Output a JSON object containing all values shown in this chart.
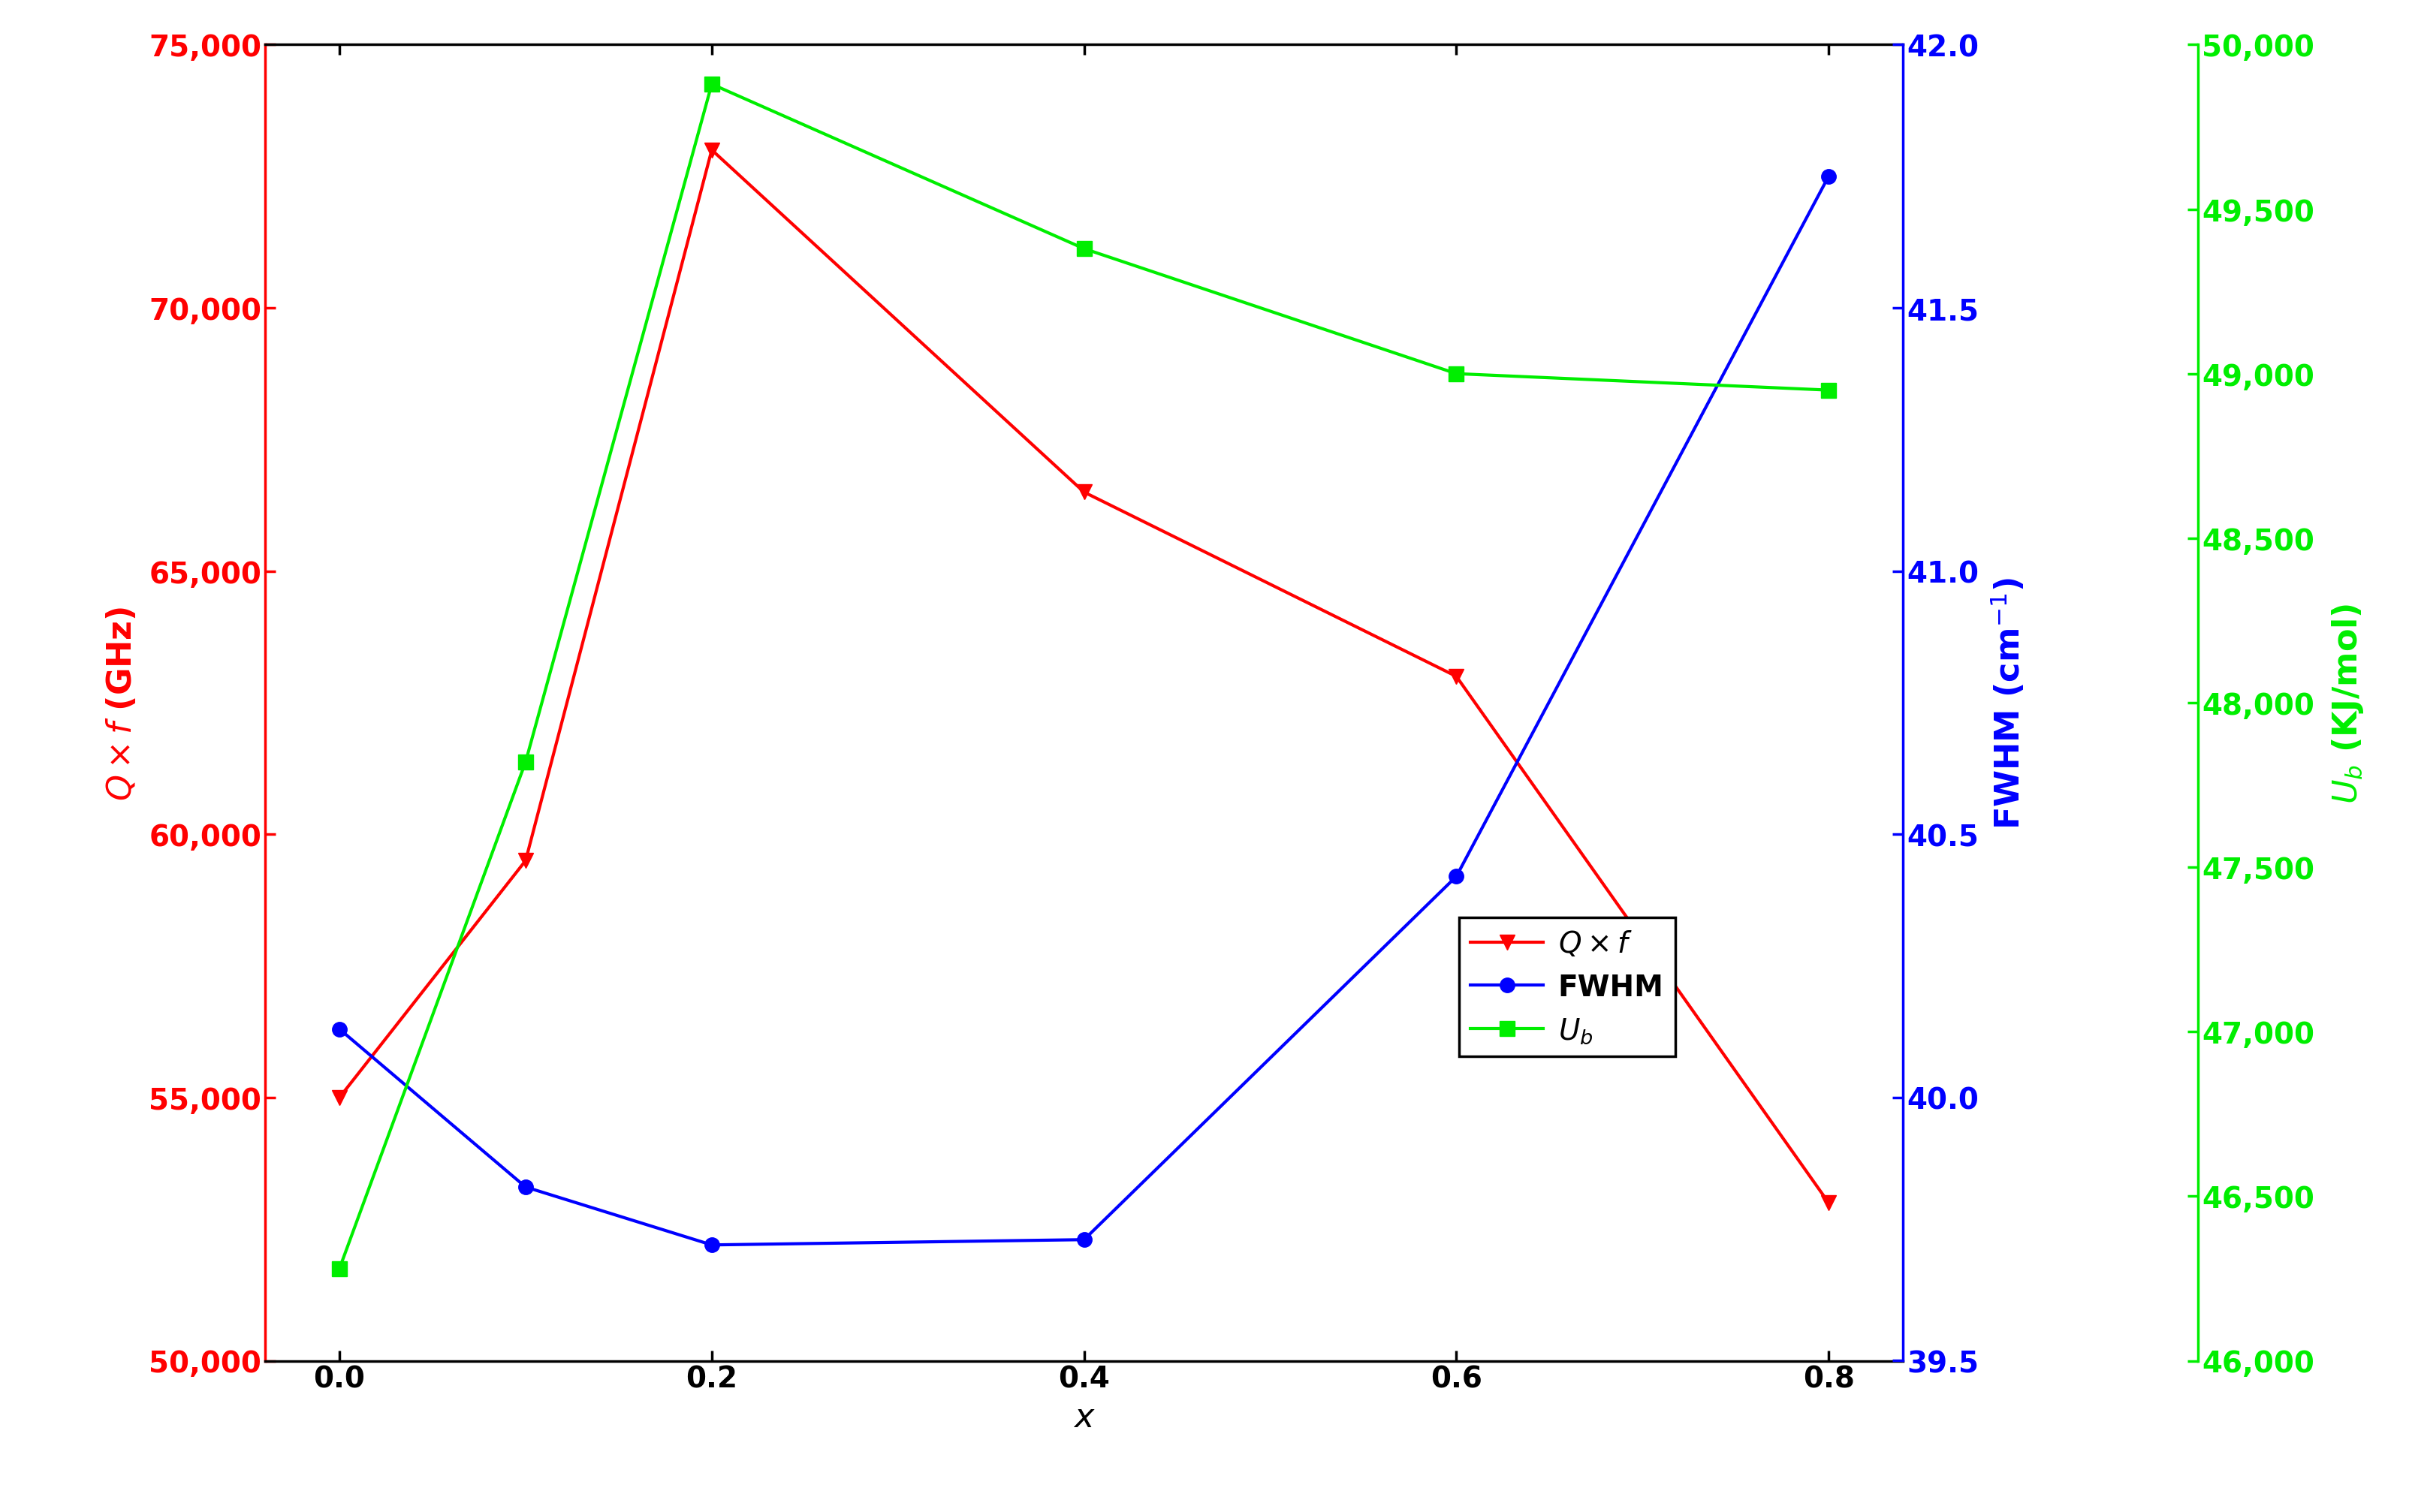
{
  "x": [
    0.0,
    0.1,
    0.2,
    0.4,
    0.6,
    0.8
  ],
  "qf": [
    55000,
    59500,
    73000,
    66500,
    63000,
    53000
  ],
  "fwhm": [
    40.13,
    39.83,
    39.72,
    39.73,
    40.42,
    41.75
  ],
  "ub": [
    46280,
    47820,
    49880,
    49380,
    49000,
    48950
  ],
  "left_ylabel": "Q×f (GHz)",
  "mid_ylabel": "FWHM (cm-1)",
  "right_ylabel": "U_b (KJ/mol)",
  "xlabel": "x",
  "left_color": "#ff0000",
  "mid_color": "#0000ff",
  "right_color": "#00ee00",
  "left_ylim": [
    50000,
    75000
  ],
  "mid_ylim": [
    39.5,
    42.0
  ],
  "right_ylim": [
    46000,
    50000
  ],
  "left_yticks": [
    50000,
    55000,
    60000,
    65000,
    70000,
    75000
  ],
  "mid_yticks": [
    39.5,
    40.0,
    40.5,
    41.0,
    41.5,
    42.0
  ],
  "right_yticks": [
    46000,
    46500,
    47000,
    47500,
    48000,
    48500,
    49000,
    49500,
    50000
  ],
  "xticks": [
    0.0,
    0.2,
    0.4,
    0.6,
    0.8
  ],
  "fontsize": 32,
  "tick_fontsize": 28,
  "legend_fontsize": 28,
  "linewidth": 3.0,
  "markersize": 14,
  "background_color": "white",
  "spine_linewidth": 2.5
}
